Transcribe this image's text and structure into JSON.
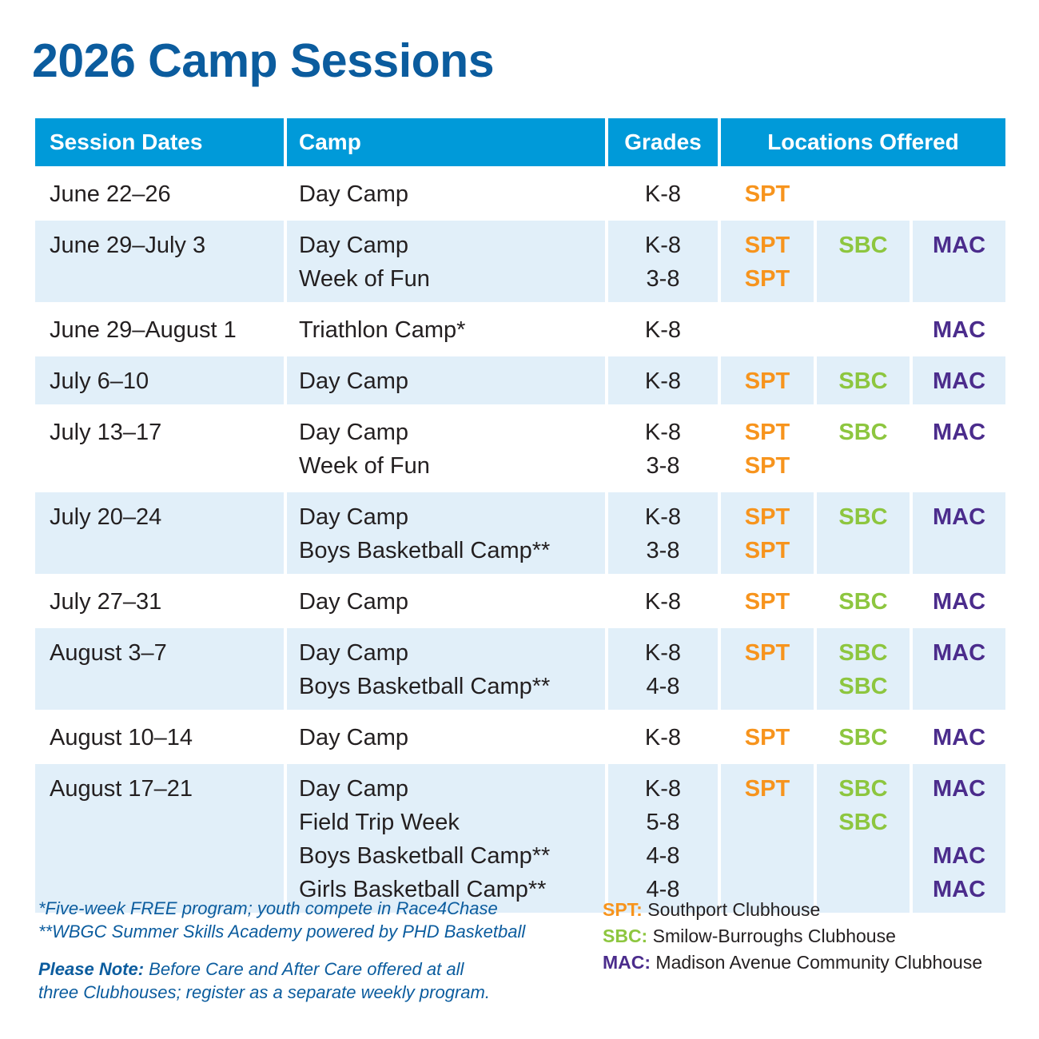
{
  "title": "2026 Camp Sessions",
  "headers": {
    "dates": "Session Dates",
    "camp": "Camp",
    "grades": "Grades",
    "locations": "Locations Offered"
  },
  "colors": {
    "header": "#009ad9",
    "title": "#0b5c9e",
    "alt_row": "#e1eff9",
    "SPT": "#f7941d",
    "SBC": "#8dc63f",
    "MAC": "#4b2c8c"
  },
  "rows": [
    {
      "date": "June 22–26",
      "entries": [
        {
          "camp": "Day Camp",
          "grades": "K-8",
          "spt": "SPT",
          "sbc": "",
          "mac": ""
        }
      ]
    },
    {
      "date": "June 29–July 3",
      "entries": [
        {
          "camp": "Day Camp",
          "grades": "K-8",
          "spt": "SPT",
          "sbc": "SBC",
          "mac": "MAC"
        },
        {
          "camp": "Week of Fun",
          "grades": "3-8",
          "spt": "SPT",
          "sbc": "",
          "mac": ""
        }
      ]
    },
    {
      "date": "June 29–August 1",
      "entries": [
        {
          "camp": "Triathlon Camp*",
          "grades": "K-8",
          "spt": "",
          "sbc": "",
          "mac": "MAC"
        }
      ]
    },
    {
      "date": "July 6–10",
      "entries": [
        {
          "camp": "Day Camp",
          "grades": "K-8",
          "spt": "SPT",
          "sbc": "SBC",
          "mac": "MAC"
        }
      ]
    },
    {
      "date": "July 13–17",
      "entries": [
        {
          "camp": "Day Camp",
          "grades": "K-8",
          "spt": "SPT",
          "sbc": "SBC",
          "mac": "MAC"
        },
        {
          "camp": "Week of Fun",
          "grades": "3-8",
          "spt": "SPT",
          "sbc": "",
          "mac": ""
        }
      ]
    },
    {
      "date": "July 20–24",
      "entries": [
        {
          "camp": "Day Camp",
          "grades": "K-8",
          "spt": "SPT",
          "sbc": "SBC",
          "mac": "MAC"
        },
        {
          "camp": "Boys Basketball Camp**",
          "grades": "3-8",
          "spt": "SPT",
          "sbc": "",
          "mac": ""
        }
      ]
    },
    {
      "date": "July 27–31",
      "entries": [
        {
          "camp": "Day Camp",
          "grades": "K-8",
          "spt": "SPT",
          "sbc": "SBC",
          "mac": "MAC"
        }
      ]
    },
    {
      "date": "August 3–7",
      "entries": [
        {
          "camp": "Day Camp",
          "grades": "K-8",
          "spt": "SPT",
          "sbc": "SBC",
          "mac": "MAC"
        },
        {
          "camp": "Boys Basketball Camp**",
          "grades": "4-8",
          "spt": "",
          "sbc": "SBC",
          "mac": ""
        }
      ]
    },
    {
      "date": "August 10–14",
      "entries": [
        {
          "camp": "Day Camp",
          "grades": "K-8",
          "spt": "SPT",
          "sbc": "SBC",
          "mac": "MAC"
        }
      ]
    },
    {
      "date": "August 17–21",
      "entries": [
        {
          "camp": "Day Camp",
          "grades": "K-8",
          "spt": "SPT",
          "sbc": "SBC",
          "mac": "MAC"
        },
        {
          "camp": "Field Trip Week",
          "grades": "5-8",
          "spt": "",
          "sbc": "SBC",
          "mac": ""
        },
        {
          "camp": "Boys Basketball Camp**",
          "grades": "4-8",
          "spt": "",
          "sbc": "",
          "mac": "MAC"
        },
        {
          "camp": "Girls Basketball Camp**",
          "grades": "4-8",
          "spt": "",
          "sbc": "",
          "mac": "MAC"
        }
      ]
    }
  ],
  "footnotes": {
    "one_star": "*Five-week FREE program; youth compete in Race4Chase",
    "two_star": "**WBGC Summer Skills Academy powered by PHD Basketball",
    "note_label": "Please Note:",
    "note_line1": " Before Care and After Care offered at all",
    "note_line2": "three Clubhouses; register as a separate weekly program."
  },
  "legend": [
    {
      "code": "SPT:",
      "name": " Southport Clubhouse"
    },
    {
      "code": "SBC:",
      "name": " Smilow-Burroughs Clubhouse"
    },
    {
      "code": "MAC:",
      "name": " Madison Avenue Community Clubhouse"
    }
  ]
}
